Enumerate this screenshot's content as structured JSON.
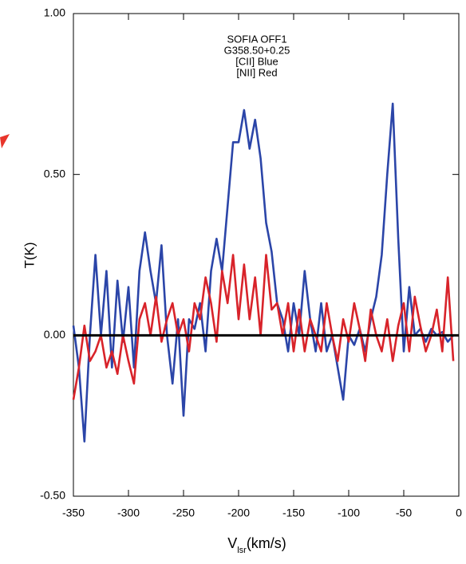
{
  "chart_data": {
    "type": "line",
    "title_lines": [
      "SOFIA OFF1",
      "G358.50+0.25",
      "[CII] Blue",
      "[NII] Red"
    ],
    "y_label": "T(K)",
    "x_label": {
      "main": "V",
      "sub": "lsr",
      "unit": "(km/s)"
    },
    "x": [
      -350,
      -345,
      -340,
      -335,
      -330,
      -325,
      -320,
      -315,
      -310,
      -305,
      -300,
      -295,
      -290,
      -285,
      -280,
      -275,
      -270,
      -265,
      -260,
      -255,
      -250,
      -245,
      -240,
      -235,
      -230,
      -225,
      -220,
      -215,
      -210,
      -205,
      -200,
      -195,
      -190,
      -185,
      -180,
      -175,
      -170,
      -165,
      -160,
      -155,
      -150,
      -145,
      -140,
      -135,
      -130,
      -125,
      -120,
      -115,
      -110,
      -105,
      -100,
      -95,
      -90,
      -85,
      -80,
      -75,
      -70,
      -65,
      -60,
      -55,
      -50,
      -45,
      -40,
      -35,
      -30,
      -25,
      -20,
      -15,
      -10,
      -5
    ],
    "series": [
      {
        "color": "#2b45a8",
        "values": [
          0.03,
          -0.1,
          -0.33,
          0.0,
          0.25,
          0.0,
          0.2,
          -0.1,
          0.17,
          -0.02,
          0.15,
          -0.1,
          0.2,
          0.32,
          0.2,
          0.1,
          0.28,
          0.0,
          -0.15,
          0.05,
          -0.25,
          0.05,
          0.02,
          0.1,
          -0.05,
          0.2,
          0.3,
          0.2,
          0.4,
          0.6,
          0.6,
          0.7,
          0.58,
          0.67,
          0.55,
          0.35,
          0.26,
          0.1,
          0.05,
          -0.05,
          0.1,
          0.0,
          0.2,
          0.05,
          -0.05,
          0.1,
          -0.05,
          0.0,
          -0.1,
          -0.2,
          0.0,
          -0.03,
          0.02,
          -0.05,
          0.05,
          0.12,
          0.25,
          0.5,
          0.72,
          0.3,
          -0.05,
          0.15,
          0.0,
          0.02,
          -0.02,
          0.02,
          0.0,
          0.01,
          -0.02,
          0.0
        ]
      },
      {
        "color": "#d8232a",
        "values": [
          -0.2,
          -0.1,
          0.03,
          -0.08,
          -0.05,
          0.0,
          -0.1,
          -0.05,
          -0.12,
          0.0,
          -0.08,
          -0.15,
          0.05,
          0.1,
          0.0,
          0.12,
          -0.02,
          0.05,
          0.1,
          0.0,
          0.05,
          -0.05,
          0.1,
          0.05,
          0.18,
          0.1,
          -0.02,
          0.2,
          0.1,
          0.25,
          0.05,
          0.22,
          0.05,
          0.18,
          0.0,
          0.25,
          0.08,
          0.1,
          0.0,
          0.1,
          -0.05,
          0.08,
          -0.05,
          0.05,
          0.0,
          -0.05,
          0.1,
          0.0,
          -0.08,
          0.05,
          -0.02,
          0.1,
          0.02,
          -0.08,
          0.08,
          0.0,
          -0.05,
          0.05,
          -0.08,
          0.03,
          0.1,
          -0.05,
          0.12,
          0.03,
          -0.05,
          0.0,
          0.08,
          -0.05,
          0.18,
          -0.08
        ]
      }
    ],
    "reference_line": 0,
    "xlim": [
      -350,
      0
    ],
    "xticks": [
      -350,
      -300,
      -250,
      -200,
      -150,
      -100,
      -50,
      0
    ],
    "ylim": [
      -0.5,
      1.0
    ],
    "yticks": [
      {
        "value": -0.5,
        "label": "-0.50"
      },
      {
        "value": 0,
        "label": "0.00"
      },
      {
        "value": 0.5,
        "label": "0.50"
      },
      {
        "value": 1.0,
        "label": "1.00"
      }
    ]
  }
}
